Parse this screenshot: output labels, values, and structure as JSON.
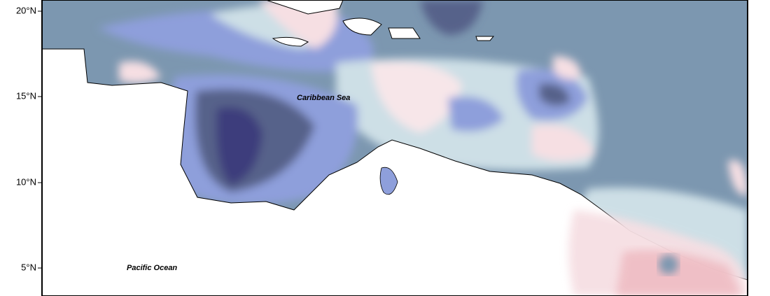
{
  "axis": {
    "labels": [
      "20°N",
      "15°N",
      "10°N",
      "5°N"
    ]
  },
  "places": {
    "caribbean": "Caribbean Sea",
    "pacific": "Pacific Ocean"
  }
}
